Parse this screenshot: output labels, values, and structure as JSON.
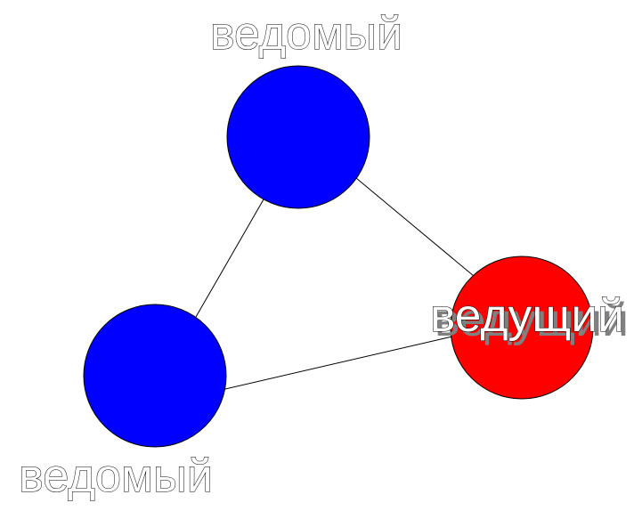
{
  "colors": {
    "follower": "#0000ff",
    "leader": "#ff0000",
    "edge": "#000000",
    "background": "#ffffff"
  },
  "nodes": {
    "follower_top": {
      "label": "ведомый"
    },
    "follower_bottom": {
      "label": "ведомый"
    },
    "leader": {
      "label": "ведущий"
    }
  }
}
